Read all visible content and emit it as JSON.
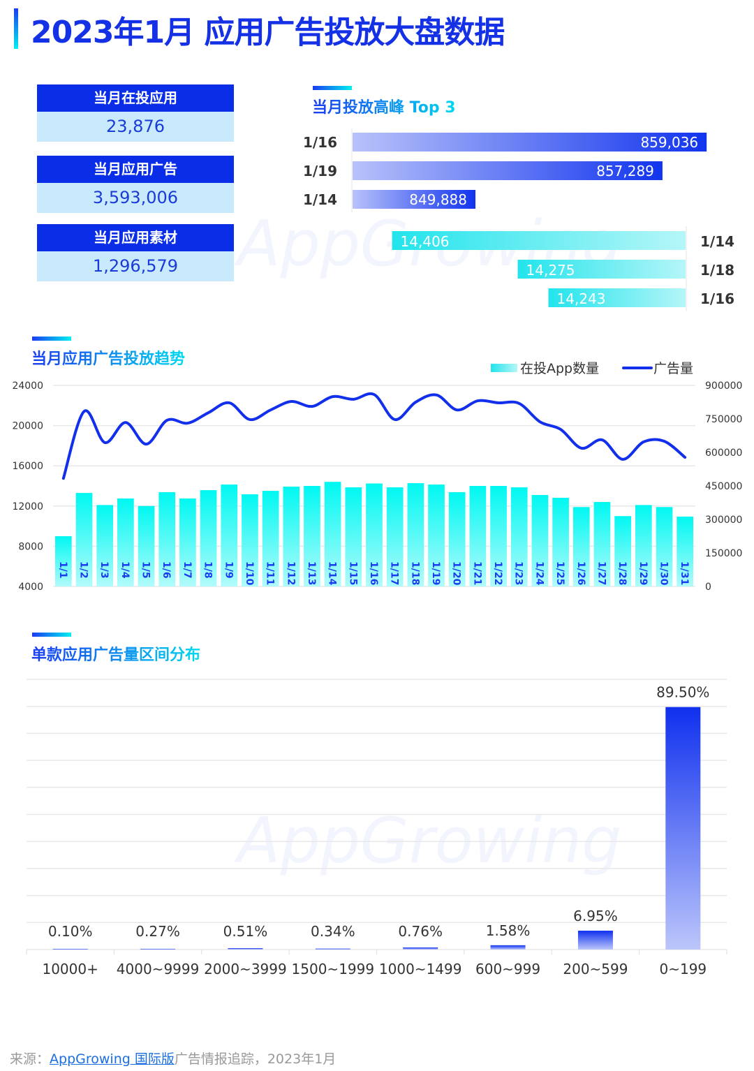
{
  "title": "2023年1月 应用广告投放大盘数据",
  "stats": [
    {
      "label": "当月在投应用",
      "value": "23,876"
    },
    {
      "label": "当月应用广告",
      "value": "3,593,006"
    },
    {
      "label": "当月应用素材",
      "value": "1,296,579"
    }
  ],
  "sections": {
    "top3": "当月投放高峰 Top 3",
    "trend": "当月应用广告投放趋势",
    "distribution": "单款应用广告量区间分布"
  },
  "source": {
    "prefix": "来源：",
    "link": "AppGrowing 国际版",
    "suffix": "广告情报追踪，2023年1月"
  },
  "watermark": "AppGrowing",
  "colors": {
    "primary": "#0a2ee8",
    "cyan": "#00f5f0",
    "light": "#c9eafd"
  },
  "chart_data": [
    {
      "type": "bar",
      "orientation": "horizontal",
      "categories": [
        "1/16",
        "1/19",
        "1/14"
      ],
      "values": [
        859036,
        857289,
        849888
      ],
      "value_labels": [
        "859,036",
        "857,289",
        "849,888"
      ]
    },
    {
      "type": "bar",
      "orientation": "horizontal",
      "categories": [
        "1/14",
        "1/18",
        "1/16"
      ],
      "values": [
        14406,
        14275,
        14243
      ],
      "value_labels": [
        "14,406",
        "14,275",
        "14,243"
      ]
    },
    {
      "type": "bar+line",
      "categories": [
        "1/1",
        "1/2",
        "1/3",
        "1/4",
        "1/5",
        "1/6",
        "1/7",
        "1/8",
        "1/9",
        "1/10",
        "1/11",
        "1/12",
        "1/13",
        "1/14",
        "1/15",
        "1/16",
        "1/17",
        "1/18",
        "1/19",
        "1/20",
        "1/21",
        "1/22",
        "1/23",
        "1/24",
        "1/25",
        "1/26",
        "1/27",
        "1/28",
        "1/29",
        "1/30",
        "1/31"
      ],
      "legend": [
        "在投App数量",
        "广告量"
      ],
      "legend_position": "top-right",
      "series": [
        {
          "name": "在投App数量",
          "type": "bar",
          "axis": "left",
          "values": [
            9000,
            13300,
            12100,
            12750,
            12000,
            13380,
            12750,
            13580,
            14140,
            13170,
            13510,
            13930,
            14000,
            14406,
            13860,
            14243,
            13860,
            14275,
            14140,
            13380,
            14000,
            14000,
            13860,
            13100,
            12820,
            11900,
            12400,
            11000,
            12100,
            11900,
            10950
          ]
        },
        {
          "name": "广告量",
          "type": "line",
          "axis": "right",
          "values": [
            484000,
            784000,
            644000,
            734000,
            637000,
            744000,
            731000,
            778000,
            822000,
            747000,
            790000,
            828000,
            806000,
            849888,
            838000,
            859036,
            747000,
            825000,
            857289,
            790000,
            831000,
            822000,
            819000,
            737000,
            703000,
            619000,
            656000,
            569000,
            647000,
            650000,
            578000
          ]
        }
      ],
      "left_axis": {
        "range": [
          4000,
          24000
        ],
        "ticks": [
          "24000",
          "20000",
          "16000",
          "12000",
          "8000",
          "4000"
        ]
      },
      "right_axis": {
        "range": [
          0,
          900000
        ],
        "ticks": [
          "900000",
          "750000",
          "600000",
          "450000",
          "300000",
          "150000",
          "0"
        ]
      },
      "grid": true
    },
    {
      "type": "bar",
      "categories": [
        "10000+",
        "4000~9999",
        "2000~3999",
        "1500~1999",
        "1000~1499",
        "600~999",
        "200~599",
        "0~199"
      ],
      "values": [
        0.1,
        0.27,
        0.51,
        0.34,
        0.76,
        1.58,
        6.95,
        89.5
      ],
      "value_labels": [
        "0.10%",
        "0.27%",
        "0.51%",
        "0.34%",
        "0.76%",
        "1.58%",
        "6.95%",
        "89.50%"
      ],
      "grid": true
    }
  ]
}
